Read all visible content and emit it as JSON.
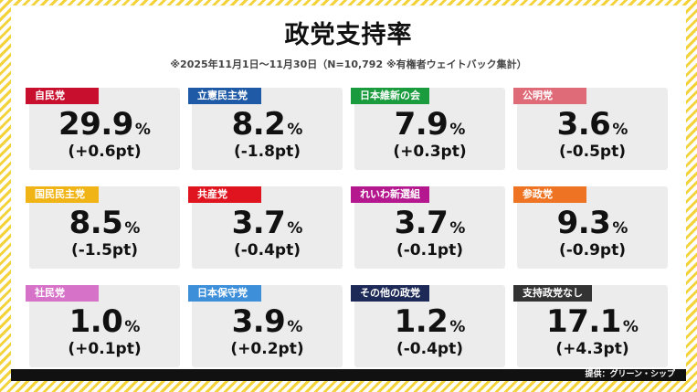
{
  "title": "政党支持率",
  "subtitle": "※2025年11月1日～11月30日（N=10,792 ※有権者ウェイトバック集計）",
  "unit": "%",
  "credit": "提供：グリーン・シップ",
  "parties": [
    {
      "name": "自民党",
      "value": "29.9",
      "change": "(+0.6pt)",
      "color": "#c8102e"
    },
    {
      "name": "立憲民主党",
      "value": "8.2",
      "change": "(-1.8pt)",
      "color": "#1f5aa6"
    },
    {
      "name": "日本維新の会",
      "value": "7.9",
      "change": "(+0.3pt)",
      "color": "#1a9c3e"
    },
    {
      "name": "公明党",
      "value": "3.6",
      "change": "(-0.5pt)",
      "color": "#e06b78"
    },
    {
      "name": "国民民主党",
      "value": "8.5",
      "change": "(-1.5pt)",
      "color": "#f0b416"
    },
    {
      "name": "共産党",
      "value": "3.7",
      "change": "(-0.4pt)",
      "color": "#e0141e"
    },
    {
      "name": "れいわ新選組",
      "value": "3.7",
      "change": "(-0.1pt)",
      "color": "#b5178f"
    },
    {
      "name": "参政党",
      "value": "9.3",
      "change": "(-0.9pt)",
      "color": "#ee7423"
    },
    {
      "name": "社民党",
      "value": "1.0",
      "change": "(+0.1pt)",
      "color": "#d772c9"
    },
    {
      "name": "日本保守党",
      "value": "3.9",
      "change": "(+0.2pt)",
      "color": "#3d8fd9"
    },
    {
      "name": "その他の政党",
      "value": "1.2",
      "change": "(-0.4pt)",
      "color": "#1d2a57"
    },
    {
      "name": "支持政党なし",
      "value": "17.1",
      "change": "(+4.3pt)",
      "color": "#333333"
    }
  ]
}
